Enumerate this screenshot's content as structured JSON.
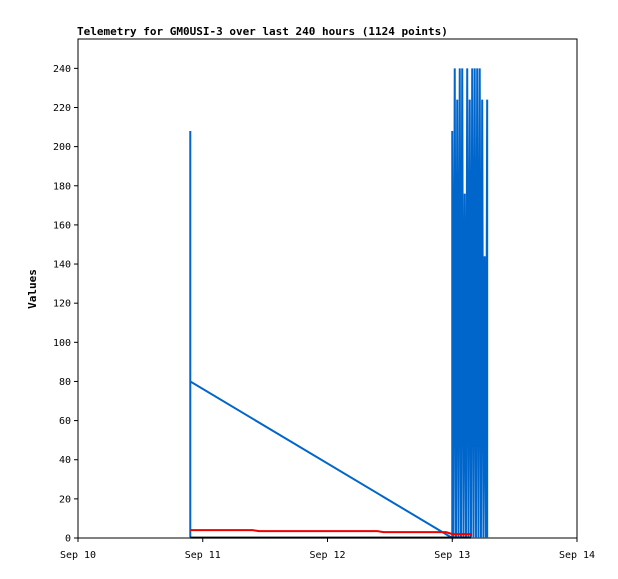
{
  "chart_data": {
    "type": "line",
    "title": "Telemetry for GM0USI-3 over last 240 hours (1124 points)",
    "xlabel": "",
    "ylabel": "Values",
    "x_ticks": [
      "Sep 10",
      "Sep 11",
      "Sep 12",
      "Sep 13",
      "Sep 14"
    ],
    "xlim_days": [
      10,
      14
    ],
    "y_ticks": [
      0,
      20,
      40,
      60,
      80,
      100,
      120,
      140,
      160,
      180,
      200,
      220,
      240
    ],
    "ylim": [
      0,
      255
    ],
    "grid": false,
    "legend": "none",
    "series": [
      {
        "color": "#0066cc",
        "points": [
          [
            10.9,
            0
          ],
          [
            10.9,
            208
          ],
          [
            10.9,
            80
          ],
          [
            13.0,
            0
          ],
          [
            13.0,
            208
          ],
          [
            13.01,
            0
          ],
          [
            13.02,
            240
          ],
          [
            13.03,
            0
          ],
          [
            13.04,
            224
          ],
          [
            13.05,
            0
          ],
          [
            13.06,
            240
          ],
          [
            13.07,
            0
          ],
          [
            13.08,
            240
          ],
          [
            13.09,
            0
          ],
          [
            13.1,
            176
          ],
          [
            13.11,
            0
          ],
          [
            13.12,
            240
          ],
          [
            13.13,
            0
          ],
          [
            13.14,
            224
          ],
          [
            13.15,
            0
          ],
          [
            13.16,
            240
          ],
          [
            13.17,
            0
          ],
          [
            13.18,
            240
          ],
          [
            13.19,
            0
          ],
          [
            13.2,
            240
          ],
          [
            13.21,
            0
          ],
          [
            13.22,
            240
          ],
          [
            13.23,
            0
          ],
          [
            13.24,
            224
          ],
          [
            13.25,
            0
          ],
          [
            13.26,
            144
          ],
          [
            13.27,
            0
          ],
          [
            13.28,
            224
          ],
          [
            13.28,
            0
          ]
        ]
      },
      {
        "color": "#ee0000",
        "points": [
          [
            10.9,
            4
          ],
          [
            11.4,
            4
          ],
          [
            11.45,
            3.5
          ],
          [
            12.4,
            3.5
          ],
          [
            12.45,
            3
          ],
          [
            12.95,
            3
          ],
          [
            13.0,
            2
          ],
          [
            13.15,
            2
          ],
          [
            13.15,
            1
          ]
        ]
      },
      {
        "color": "#000000",
        "points": [
          [
            10.9,
            0.2
          ],
          [
            13.15,
            0.2
          ]
        ]
      }
    ]
  }
}
